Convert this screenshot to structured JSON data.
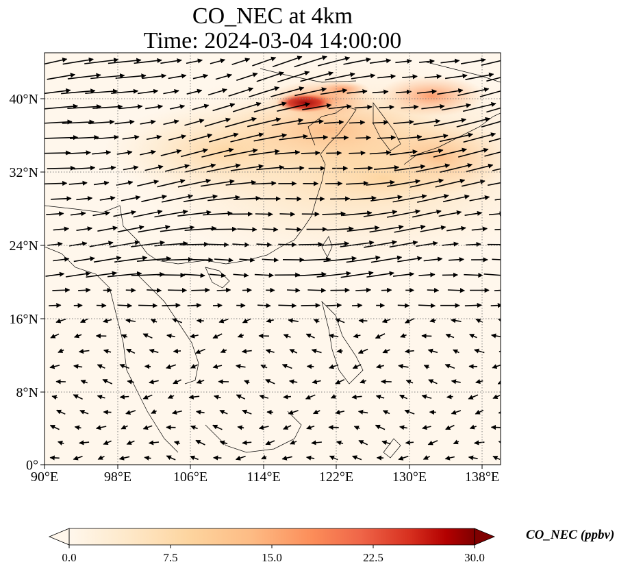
{
  "title": {
    "line1": "CO_NEC at 4km",
    "line2": "Time: 2024-03-04 14:00:00"
  },
  "map": {
    "lon_range": [
      90,
      140
    ],
    "lat_range": [
      0,
      44
    ],
    "x_ticks": [
      "90°E",
      "98°E",
      "106°E",
      "114°E",
      "122°E",
      "130°E",
      "138°E"
    ],
    "y_ticks": [
      "0°",
      "8°N",
      "16°N",
      "24°N",
      "32°N",
      "40°N"
    ],
    "gridlines": "dotted",
    "colormap": "OrRd"
  },
  "colorbar": {
    "label": "CO_NEC (ppbv)",
    "ticks": [
      "0.0",
      "7.5",
      "15.0",
      "22.5",
      "30.0"
    ],
    "extend": "both",
    "colors": [
      "#fff7ec",
      "#fee8c8",
      "#fdd49e",
      "#fdbb84",
      "#fc8d59",
      "#ef6548",
      "#d7301f",
      "#b30000",
      "#7f0000"
    ]
  }
}
